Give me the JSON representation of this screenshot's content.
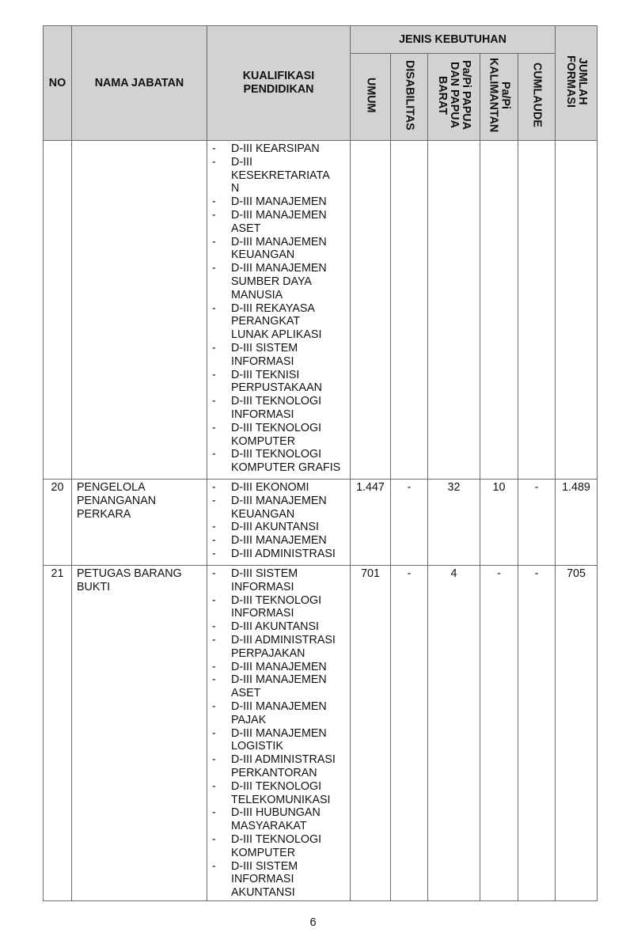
{
  "table": {
    "headers": {
      "no": "NO",
      "nama_jabatan": "NAMA JABATAN",
      "kualifikasi": "KUALIFIKASI PENDIDIKAN",
      "jenis_kebutuhan": "JENIS KEBUTUHAN",
      "umum": "UMUM",
      "disabilitas": "DISABILITAS",
      "papua": "Pa/Pi PAPUA DAN PAPUA BARAT",
      "kalimantan": "Pa/Pi KALIMANTAN",
      "cumlaude": "CUMLAUDE",
      "jumlah": "JUMLAH FORMASI"
    },
    "rows": [
      {
        "no": "",
        "nama": "",
        "kualifikasi": [
          "D-III KEARSIPAN",
          "D-III\nKESEKRETARIATA\nN",
          "D-III MANAJEMEN",
          "D-III MANAJEMEN\nASET",
          "D-III MANAJEMEN\nKEUANGAN",
          "D-III MANAJEMEN\nSUMBER DAYA\nMANUSIA",
          "D-III REKAYASA\nPERANGKAT\nLUNAK APLIKASI",
          "D-III SISTEM\nINFORMASI",
          "D-III TEKNISI\nPERPUSTAKAAN",
          "D-III TEKNOLOGI\nINFORMASI",
          "D-III TEKNOLOGI\nKOMPUTER",
          "D-III TEKNOLOGI\nKOMPUTER GRAFIS"
        ],
        "umum": "",
        "disabilitas": "",
        "papua": "",
        "kalimantan": "",
        "cumlaude": "",
        "jumlah": ""
      },
      {
        "no": "20",
        "nama": "PENGELOLA\nPENANGANAN\nPERKARA",
        "kualifikasi": [
          "D-III EKONOMI",
          "D-III MANAJEMEN\nKEUANGAN",
          "D-III AKUNTANSI",
          "D-III MANAJEMEN",
          "D-III ADMINISTRASI"
        ],
        "umum": "1.447",
        "disabilitas": "-",
        "papua": "32",
        "kalimantan": "10",
        "cumlaude": "-",
        "jumlah": "1.489"
      },
      {
        "no": "21",
        "nama": "PETUGAS BARANG\nBUKTI",
        "kualifikasi": [
          "D-III SISTEM\nINFORMASI",
          "D-III TEKNOLOGI\nINFORMASI",
          "D-III AKUNTANSI",
          "D-III ADMINISTRASI\nPERPAJAKAN",
          "D-III MANAJEMEN",
          "D-III MANAJEMEN\nASET",
          "D-III MANAJEMEN\nPAJAK",
          "D-III MANAJEMEN\nLOGISTIK",
          "D-III ADMINISTRASI\nPERKANTORAN",
          "D-III TEKNOLOGI\nTELEKOMUNIKASI",
          "D-III HUBUNGAN\nMASYARAKAT",
          "D-III TEKNOLOGI\nKOMPUTER",
          "D-III SISTEM\nINFORMASI\nAKUNTANSI"
        ],
        "umum": "701",
        "disabilitas": "-",
        "papua": "4",
        "kalimantan": "-",
        "cumlaude": "-",
        "jumlah": "705"
      }
    ],
    "bullet": "-"
  },
  "page_number": "6"
}
